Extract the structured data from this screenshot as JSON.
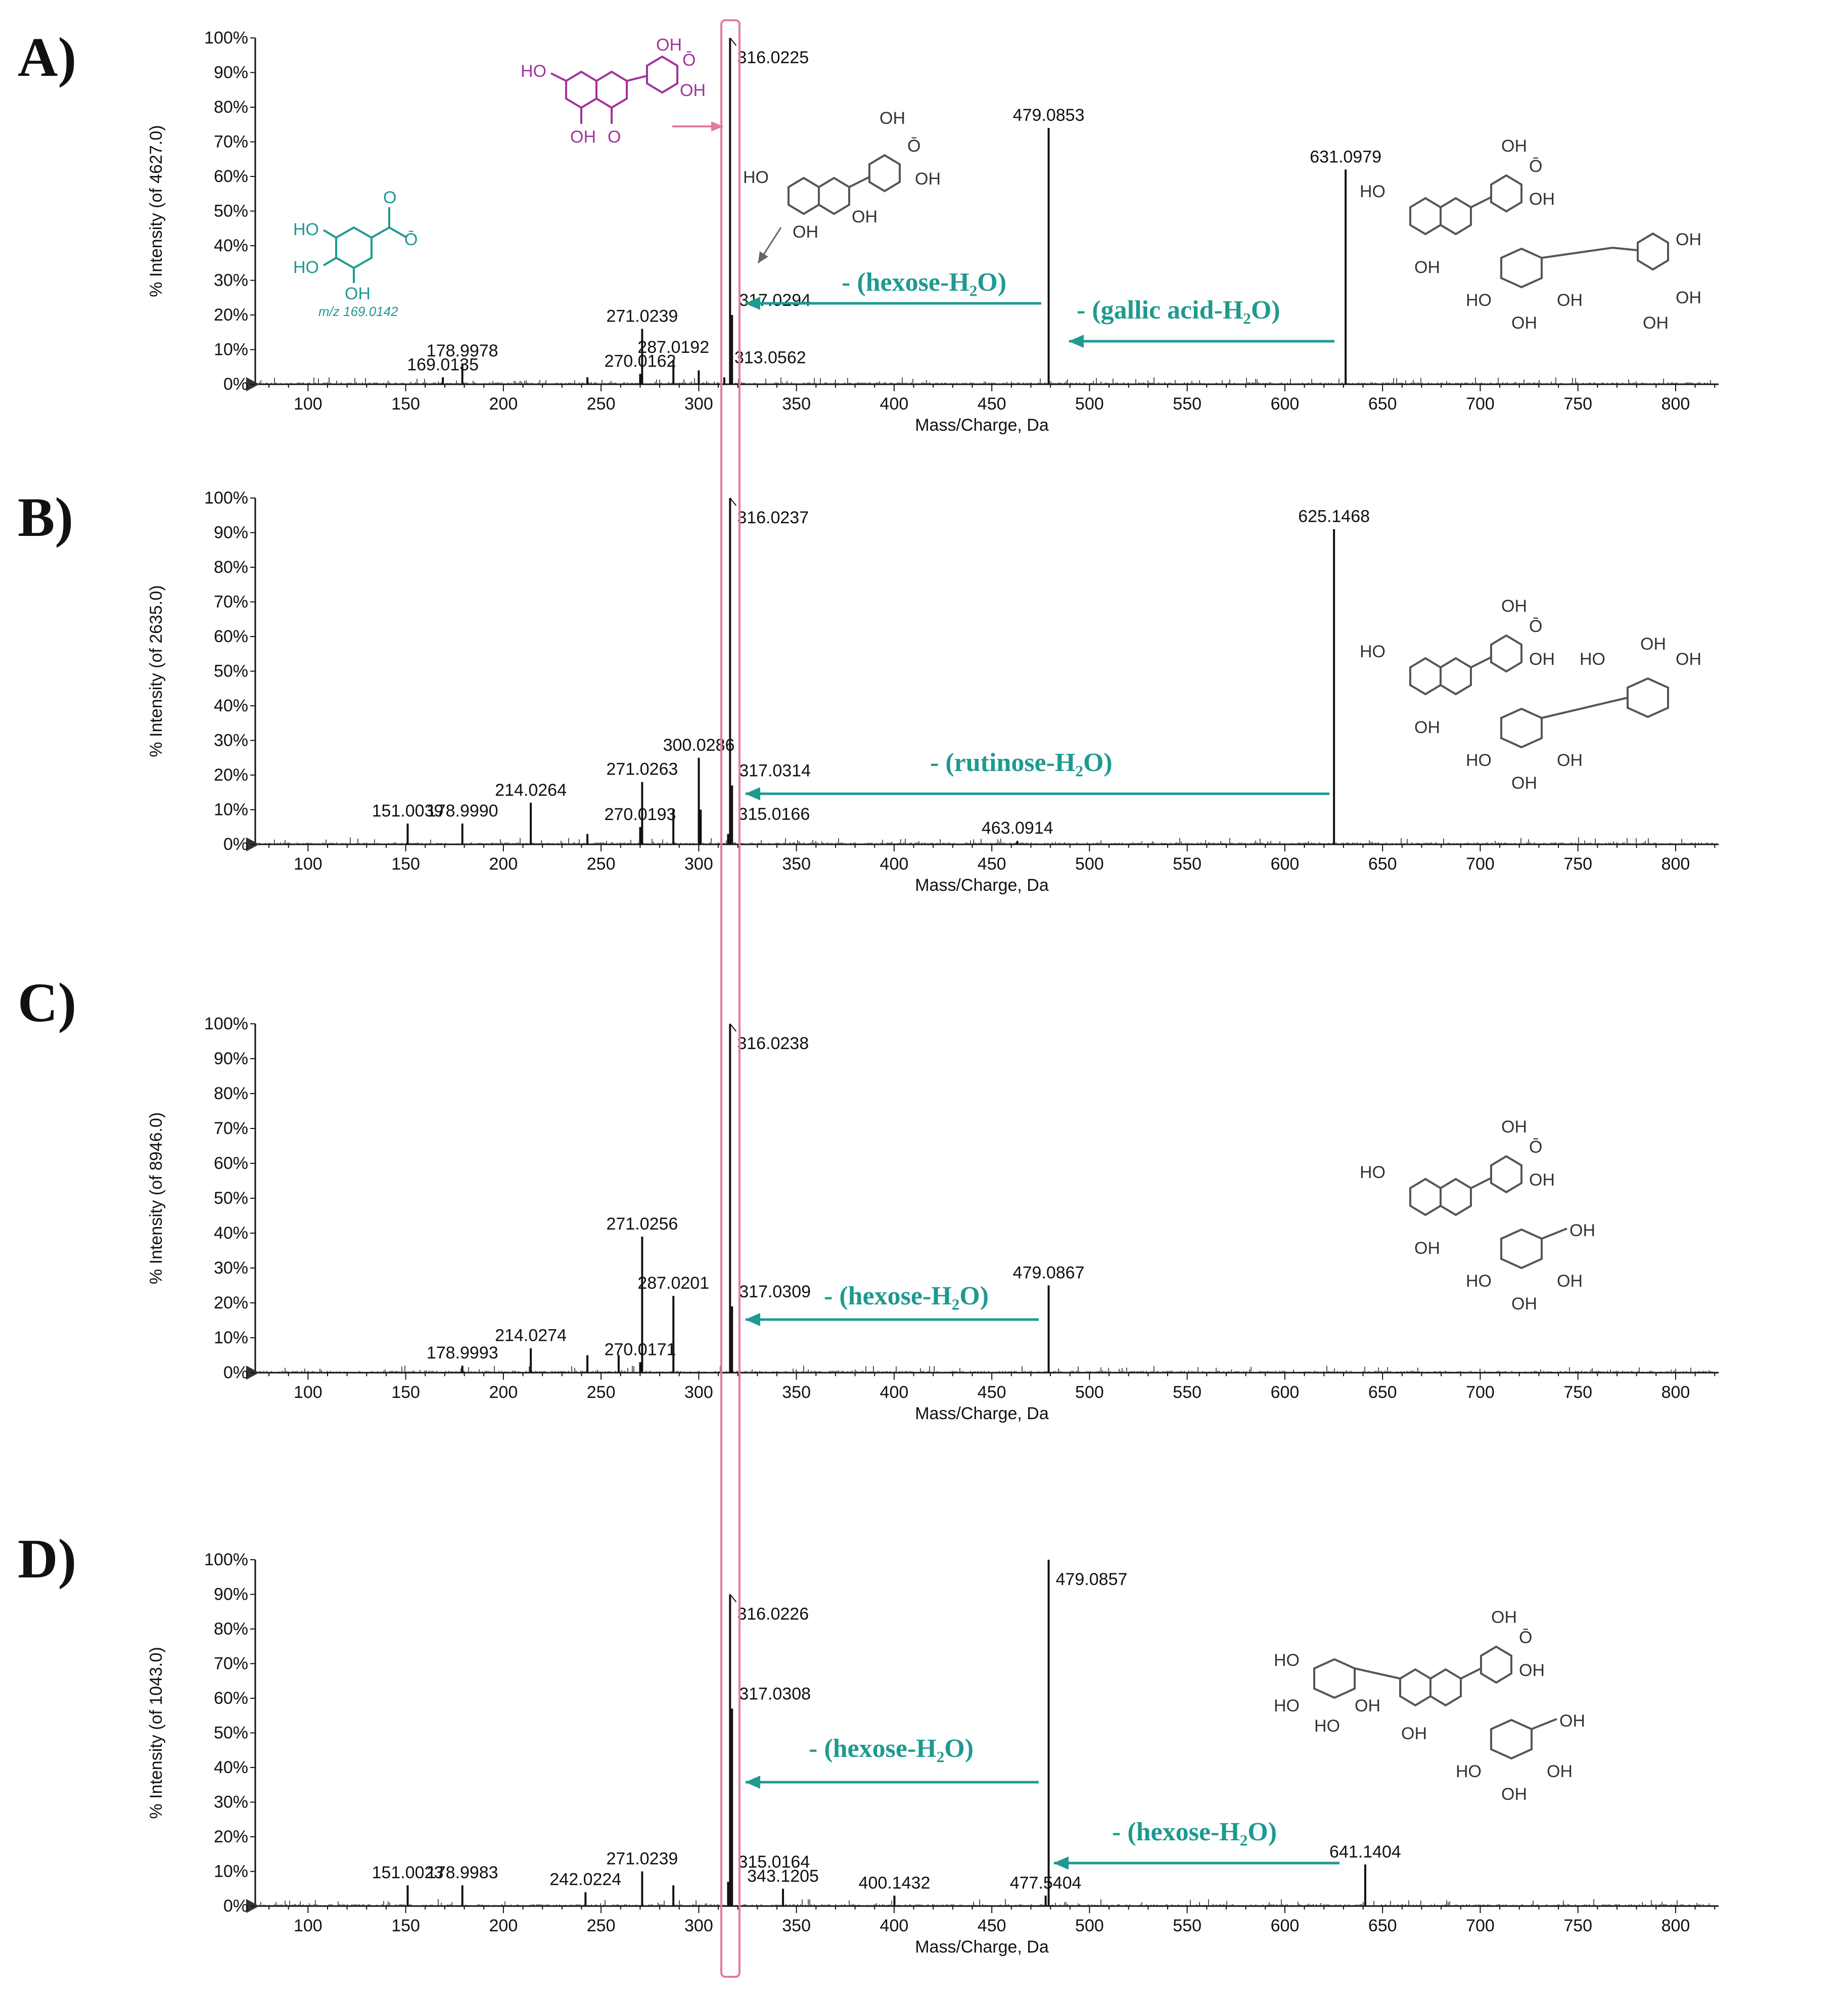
{
  "colors": {
    "accent": "#1e9a90",
    "highlight": "#e37aa0",
    "structure": "#555555",
    "purple": "#a2329a",
    "teal": "#1e9a90"
  },
  "chart_data": [
    {
      "type": "bar",
      "panel": "A)",
      "title": "",
      "xlabel": "Mass/Charge, Da",
      "ylabel": "% Intensity (of 4627.0)",
      "xlim": [
        73,
        822
      ],
      "ylim": [
        0,
        100
      ],
      "xticks": [
        100,
        150,
        200,
        250,
        300,
        350,
        400,
        450,
        500,
        550,
        600,
        650,
        700,
        750,
        800
      ],
      "yticks": [
        "0%",
        "10%",
        "20%",
        "30%",
        "40%",
        "50%",
        "60%",
        "70%",
        "80%",
        "90%",
        "100%"
      ],
      "peaks": [
        {
          "mz": 169.0135,
          "y": 2,
          "label": "169.0135"
        },
        {
          "mz": 178.9978,
          "y": 6,
          "label": "178.9978"
        },
        {
          "mz": 243.0,
          "y": 2,
          "label": ""
        },
        {
          "mz": 270.0162,
          "y": 3,
          "label": "270.0162"
        },
        {
          "mz": 271.0239,
          "y": 16,
          "label": "271.0239"
        },
        {
          "mz": 287.0192,
          "y": 7,
          "label": "287.0192"
        },
        {
          "mz": 300.0,
          "y": 4,
          "label": ""
        },
        {
          "mz": 313.0562,
          "y": 2,
          "label": "313.0562"
        },
        {
          "mz": 316.0225,
          "y": 100,
          "label": "316.0225"
        },
        {
          "mz": 317.0294,
          "y": 20,
          "label": "317.0294"
        },
        {
          "mz": 479.0853,
          "y": 74,
          "label": "479.0853"
        },
        {
          "mz": 631.0979,
          "y": 62,
          "label": "631.0979"
        }
      ],
      "annotations": [
        {
          "text": "- (hexose-H₂O)"
        },
        {
          "text": "- (gallic acid-H₂O)"
        }
      ]
    },
    {
      "type": "bar",
      "panel": "B)",
      "xlabel": "Mass/Charge, Da",
      "ylabel": "% Intensity (of 2635.0)",
      "xlim": [
        73,
        822
      ],
      "ylim": [
        0,
        100
      ],
      "xticks": [
        100,
        150,
        200,
        250,
        300,
        350,
        400,
        450,
        500,
        550,
        600,
        650,
        700,
        750,
        800
      ],
      "yticks": [
        "0%",
        "10%",
        "20%",
        "30%",
        "40%",
        "50%",
        "60%",
        "70%",
        "80%",
        "90%",
        "100%"
      ],
      "peaks": [
        {
          "mz": 151.0039,
          "y": 6,
          "label": "151.0039"
        },
        {
          "mz": 178.999,
          "y": 6,
          "label": "178.9990"
        },
        {
          "mz": 214.0264,
          "y": 12,
          "label": "214.0264"
        },
        {
          "mz": 243.0,
          "y": 3,
          "label": ""
        },
        {
          "mz": 270.0193,
          "y": 5,
          "label": "270.0193"
        },
        {
          "mz": 271.0263,
          "y": 18,
          "label": "271.0263"
        },
        {
          "mz": 287.0,
          "y": 10,
          "label": ""
        },
        {
          "mz": 300.0286,
          "y": 25,
          "label": "300.0286"
        },
        {
          "mz": 301.0,
          "y": 10,
          "label": ""
        },
        {
          "mz": 315.0166,
          "y": 3,
          "label": "315.0166"
        },
        {
          "mz": 316.0237,
          "y": 100,
          "label": "316.0237"
        },
        {
          "mz": 317.0314,
          "y": 17,
          "label": "317.0314"
        },
        {
          "mz": 463.0914,
          "y": 1,
          "label": "463.0914"
        },
        {
          "mz": 625.1468,
          "y": 91,
          "label": "625.1468"
        }
      ],
      "annotations": [
        {
          "text": "- (rutinose-H₂O)"
        }
      ]
    },
    {
      "type": "bar",
      "panel": "C)",
      "xlabel": "Mass/Charge, Da",
      "ylabel": "% Intensity (of 8946.0)",
      "xlim": [
        73,
        822
      ],
      "ylim": [
        0,
        100
      ],
      "xticks": [
        100,
        150,
        200,
        250,
        300,
        350,
        400,
        450,
        500,
        550,
        600,
        650,
        700,
        750,
        800
      ],
      "yticks": [
        "0%",
        "10%",
        "20%",
        "30%",
        "40%",
        "50%",
        "60%",
        "70%",
        "80%",
        "90%",
        "100%"
      ],
      "peaks": [
        {
          "mz": 178.9993,
          "y": 2,
          "label": "178.9993"
        },
        {
          "mz": 214.0274,
          "y": 7,
          "label": "214.0274"
        },
        {
          "mz": 243.0,
          "y": 5,
          "label": ""
        },
        {
          "mz": 259.0,
          "y": 5,
          "label": ""
        },
        {
          "mz": 270.0171,
          "y": 3,
          "label": "270.0171"
        },
        {
          "mz": 271.0256,
          "y": 39,
          "label": "271.0256"
        },
        {
          "mz": 287.0201,
          "y": 22,
          "label": "287.0201"
        },
        {
          "mz": 316.0238,
          "y": 100,
          "label": "316.0238"
        },
        {
          "mz": 317.0309,
          "y": 19,
          "label": "317.0309"
        },
        {
          "mz": 479.0867,
          "y": 25,
          "label": "479.0867"
        }
      ],
      "annotations": [
        {
          "text": "- (hexose-H₂O)"
        }
      ]
    },
    {
      "type": "bar",
      "panel": "D)",
      "xlabel": "Mass/Charge, Da",
      "ylabel": "% Intensity (of 1043.0)",
      "xlim": [
        73,
        822
      ],
      "ylim": [
        0,
        100
      ],
      "xticks": [
        100,
        150,
        200,
        250,
        300,
        350,
        400,
        450,
        500,
        550,
        600,
        650,
        700,
        750,
        800
      ],
      "yticks": [
        "0%",
        "10%",
        "20%",
        "30%",
        "40%",
        "50%",
        "60%",
        "70%",
        "80%",
        "90%",
        "100%"
      ],
      "peaks": [
        {
          "mz": 151.0023,
          "y": 6,
          "label": "151.0023"
        },
        {
          "mz": 178.9983,
          "y": 6,
          "label": "178.9983"
        },
        {
          "mz": 242.0224,
          "y": 4,
          "label": "242.0224"
        },
        {
          "mz": 271.0239,
          "y": 10,
          "label": "271.0239"
        },
        {
          "mz": 287.0,
          "y": 6,
          "label": ""
        },
        {
          "mz": 315.0164,
          "y": 7,
          "label": "315.0164"
        },
        {
          "mz": 316.0226,
          "y": 90,
          "label": "316.0226"
        },
        {
          "mz": 317.0308,
          "y": 57,
          "label": "317.0308"
        },
        {
          "mz": 343.1205,
          "y": 5,
          "label": "343.1205"
        },
        {
          "mz": 400.1432,
          "y": 3,
          "label": "400.1432"
        },
        {
          "mz": 477.5404,
          "y": 3,
          "label": "477.5404"
        },
        {
          "mz": 479.0857,
          "y": 100,
          "label": "479.0857"
        },
        {
          "mz": 641.1404,
          "y": 12,
          "label": "641.1404"
        }
      ],
      "annotations": [
        {
          "text": "- (hexose-H₂O)"
        },
        {
          "text": "- (hexose-H₂O)"
        }
      ]
    }
  ],
  "structures": {
    "gallate_mz": "m/z 169.0142",
    "oh": "OH",
    "ho": "HO",
    "o": "O",
    "o_minus": "Ō"
  }
}
